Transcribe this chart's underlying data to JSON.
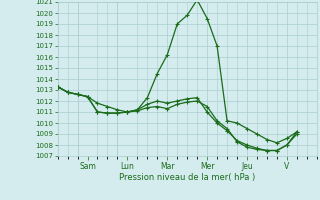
{
  "title": "Pression niveau de la mer( hPa )",
  "background_color": "#d4ecee",
  "grid_color": "#aacdd2",
  "line_color": "#1a6b1a",
  "ylim": [
    1007,
    1021
  ],
  "yticks": [
    1007,
    1008,
    1009,
    1010,
    1011,
    1012,
    1013,
    1014,
    1015,
    1016,
    1017,
    1018,
    1019,
    1020,
    1021
  ],
  "day_labels": [
    "Sam",
    "Lun",
    "Mar",
    "Mer",
    "Jeu",
    "V"
  ],
  "day_positions": [
    1.5,
    3.5,
    5.5,
    7.5,
    9.5,
    11.5
  ],
  "xlim": [
    0,
    13
  ],
  "lines": [
    {
      "x": [
        0,
        0.5,
        1.0,
        1.5,
        2.0,
        2.5,
        3.0,
        3.5,
        4.0,
        4.5,
        5.0,
        5.5,
        6.0,
        6.5,
        7.0,
        7.5,
        8.0,
        8.5,
        9.0,
        9.5,
        10.0,
        10.5,
        11.0,
        11.5,
        12.0
      ],
      "y": [
        1013.3,
        1012.8,
        1012.6,
        1012.4,
        1011.8,
        1011.5,
        1011.2,
        1011.0,
        1011.2,
        1012.3,
        1014.5,
        1016.2,
        1019.0,
        1019.8,
        1021.2,
        1019.5,
        1017.0,
        1010.2,
        1010.0,
        1009.5,
        1009.0,
        1008.5,
        1008.2,
        1008.6,
        1009.2
      ]
    },
    {
      "x": [
        0,
        0.5,
        1.0,
        1.5,
        2.0,
        2.5,
        3.0,
        3.5,
        4.0,
        4.5,
        5.0,
        5.5,
        6.0,
        6.5,
        7.0,
        7.5,
        8.0,
        8.5,
        9.0,
        9.5,
        10.0,
        10.5,
        11.0,
        11.5,
        12.0
      ],
      "y": [
        1013.3,
        1012.8,
        1012.6,
        1012.4,
        1011.0,
        1010.9,
        1010.9,
        1011.0,
        1011.1,
        1011.4,
        1011.5,
        1011.3,
        1011.7,
        1011.9,
        1012.0,
        1011.5,
        1010.2,
        1009.5,
        1008.3,
        1007.8,
        1007.6,
        1007.5,
        1007.5,
        1008.0,
        1009.0
      ]
    },
    {
      "x": [
        0,
        0.5,
        1.0,
        1.5,
        2.0,
        2.5,
        3.0,
        3.5,
        4.0,
        4.5,
        5.0,
        5.5,
        6.0,
        6.5,
        7.0,
        7.5,
        8.0,
        8.5,
        9.0,
        9.5,
        10.0,
        10.5,
        11.0,
        11.5,
        12.0
      ],
      "y": [
        1013.3,
        1012.8,
        1012.6,
        1012.4,
        1011.0,
        1010.9,
        1010.9,
        1011.0,
        1011.2,
        1011.7,
        1012.0,
        1011.8,
        1012.0,
        1012.2,
        1012.3,
        1011.0,
        1010.0,
        1009.3,
        1008.4,
        1008.0,
        1007.7,
        1007.5,
        1007.5,
        1008.0,
        1009.2
      ]
    }
  ]
}
